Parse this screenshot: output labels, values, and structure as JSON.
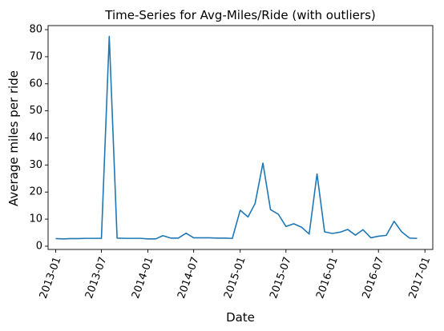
{
  "chart_data": {
    "type": "line",
    "title": "Time-Series for Avg-Miles/Ride (with outliers)",
    "xlabel": "Date",
    "ylabel": "Average miles per ride",
    "ylim": [
      -1.2,
      81.5
    ],
    "xlim": [
      "2012-12-02",
      "2017-02-01"
    ],
    "x_ticks": [
      "2013-01",
      "2013-07",
      "2014-01",
      "2014-07",
      "2015-01",
      "2015-07",
      "2016-01",
      "2016-07",
      "2017-01"
    ],
    "y_ticks": [
      0,
      10,
      20,
      30,
      40,
      50,
      60,
      70,
      80
    ],
    "grid": false,
    "line_color": "#1f77b4",
    "series": [
      {
        "x": [
          "2013-01-01",
          "2013-02-01",
          "2013-03-01",
          "2013-04-01",
          "2013-05-01",
          "2013-06-01",
          "2013-07-01",
          "2013-08-01",
          "2013-09-01",
          "2013-10-01",
          "2013-11-01",
          "2013-12-01",
          "2014-01-01",
          "2014-02-01",
          "2014-03-01",
          "2014-04-01",
          "2014-05-01",
          "2014-06-01",
          "2014-07-01",
          "2014-08-01",
          "2014-09-01",
          "2014-10-01",
          "2014-11-01",
          "2014-12-01",
          "2015-01-01",
          "2015-02-01",
          "2015-03-01",
          "2015-04-01",
          "2015-05-01",
          "2015-06-01",
          "2015-07-01",
          "2015-08-01",
          "2015-09-01",
          "2015-10-01",
          "2015-11-01",
          "2015-12-01",
          "2016-01-01",
          "2016-02-01",
          "2016-03-01",
          "2016-04-01",
          "2016-05-01",
          "2016-06-01",
          "2016-07-01",
          "2016-08-01",
          "2016-09-01",
          "2016-10-01",
          "2016-11-01",
          "2016-12-01"
        ],
        "y": [
          2.8,
          2.7,
          2.8,
          2.8,
          2.9,
          2.9,
          2.9,
          77.5,
          3.0,
          2.9,
          2.9,
          2.9,
          2.7,
          2.7,
          3.9,
          3.0,
          3.0,
          4.8,
          3.1,
          3.1,
          3.1,
          3.0,
          3.0,
          2.9,
          13.3,
          10.8,
          15.8,
          30.7,
          13.5,
          11.8,
          7.3,
          8.3,
          7.0,
          4.5,
          26.7,
          5.3,
          4.7,
          5.2,
          6.2,
          4.1,
          6.1,
          3.1,
          3.7,
          4.0,
          9.2,
          5.3,
          3.0,
          2.9
        ]
      }
    ]
  }
}
